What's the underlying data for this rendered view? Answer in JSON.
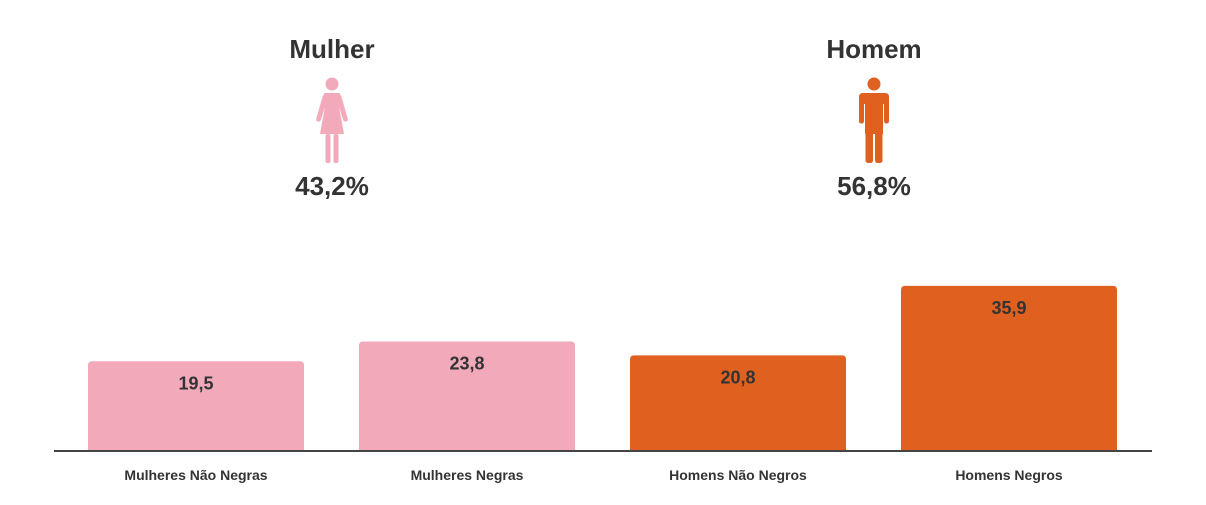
{
  "gender_summary": [
    {
      "title": "Mulher",
      "icon": "woman-icon",
      "percent": "43,2%",
      "color": "#f2aaba"
    },
    {
      "title": "Homem",
      "icon": "man-icon",
      "percent": "56,8%",
      "color": "#e06020"
    }
  ],
  "chart_data": {
    "type": "bar",
    "categories": [
      "Mulheres Não Negras",
      "Mulheres Negras",
      "Homens Não Negros",
      "Homens Negros"
    ],
    "values": [
      19.5,
      23.8,
      20.8,
      35.9
    ],
    "value_labels": [
      "19,5",
      "23,8",
      "20,8",
      "35,9"
    ],
    "colors": [
      "#f2aaba",
      "#f2aaba",
      "#e06020",
      "#e06020"
    ],
    "ylim": [
      0,
      40
    ],
    "grid": false,
    "show_y_axis": false
  }
}
